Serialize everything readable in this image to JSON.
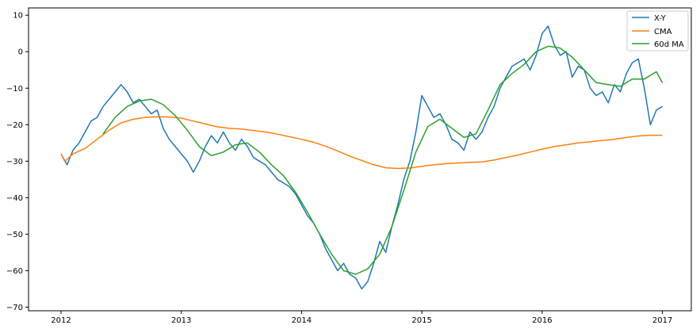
{
  "chart_data": {
    "type": "line",
    "title": "",
    "xlabel": "",
    "ylabel": "",
    "xlim": [
      2011.73,
      2017.24
    ],
    "ylim": [
      -71,
      12
    ],
    "grid": false,
    "legend_position": "top-right",
    "x_ticks": [
      {
        "value": 2012,
        "label": "2012"
      },
      {
        "value": 2013,
        "label": "2013"
      },
      {
        "value": 2014,
        "label": "2014"
      },
      {
        "value": 2015,
        "label": "2015"
      },
      {
        "value": 2016,
        "label": "2016"
      },
      {
        "value": 2017,
        "label": "2017"
      }
    ],
    "y_ticks": [
      {
        "value": 10,
        "label": "10"
      },
      {
        "value": 0,
        "label": "0"
      },
      {
        "value": -10,
        "label": "−10"
      },
      {
        "value": -20,
        "label": "−20"
      },
      {
        "value": -30,
        "label": "−30"
      },
      {
        "value": -40,
        "label": "−40"
      },
      {
        "value": -50,
        "label": "−50"
      },
      {
        "value": -60,
        "label": "−60"
      },
      {
        "value": -70,
        "label": "−70"
      }
    ],
    "series": [
      {
        "name": "X-Y",
        "color": "#1f77b4",
        "x": [
          2012.0,
          2012.05,
          2012.1,
          2012.15,
          2012.2,
          2012.25,
          2012.3,
          2012.35,
          2012.4,
          2012.45,
          2012.5,
          2012.55,
          2012.6,
          2012.65,
          2012.7,
          2012.75,
          2012.8,
          2012.85,
          2012.9,
          2012.95,
          2013.0,
          2013.05,
          2013.1,
          2013.15,
          2013.2,
          2013.25,
          2013.3,
          2013.35,
          2013.4,
          2013.45,
          2013.5,
          2013.55,
          2013.6,
          2013.65,
          2013.7,
          2013.75,
          2013.8,
          2013.85,
          2013.9,
          2013.95,
          2014.0,
          2014.05,
          2014.1,
          2014.15,
          2014.2,
          2014.25,
          2014.3,
          2014.35,
          2014.4,
          2014.45,
          2014.5,
          2014.55,
          2014.6,
          2014.65,
          2014.7,
          2014.75,
          2014.8,
          2014.85,
          2014.9,
          2014.95,
          2015.0,
          2015.05,
          2015.1,
          2015.15,
          2015.2,
          2015.25,
          2015.3,
          2015.35,
          2015.4,
          2015.45,
          2015.5,
          2015.55,
          2015.6,
          2015.65,
          2015.7,
          2015.75,
          2015.8,
          2015.85,
          2015.9,
          2015.95,
          2016.0,
          2016.05,
          2016.1,
          2016.15,
          2016.2,
          2016.25,
          2016.3,
          2016.35,
          2016.4,
          2016.45,
          2016.5,
          2016.55,
          2016.6,
          2016.65,
          2016.7,
          2016.75,
          2016.8,
          2016.85,
          2016.9,
          2016.95,
          2017.0
        ],
        "y": [
          -28,
          -31,
          -27,
          -25,
          -22,
          -19,
          -18,
          -15,
          -13,
          -11,
          -9,
          -11,
          -14,
          -13,
          -15,
          -17,
          -16,
          -21,
          -24,
          -26,
          -28,
          -30,
          -33,
          -30,
          -26,
          -23,
          -25,
          -22,
          -25,
          -27,
          -24,
          -26,
          -29,
          -30,
          -31,
          -33,
          -35,
          -36,
          -37,
          -39,
          -42,
          -45,
          -47,
          -50,
          -54,
          -57,
          -60,
          -58,
          -61,
          -62,
          -65,
          -63,
          -58,
          -52,
          -55,
          -48,
          -42,
          -35,
          -30,
          -22,
          -12,
          -15,
          -18,
          -17,
          -20,
          -24,
          -25,
          -27,
          -22,
          -24,
          -22,
          -18,
          -15,
          -10,
          -7,
          -4,
          -3,
          -2,
          -5,
          -1,
          5,
          7,
          2,
          -1,
          0,
          -7,
          -4,
          -5,
          -10,
          -12,
          -11,
          -14,
          -9,
          -11,
          -6,
          -3,
          -2,
          -10,
          -20,
          -16,
          -15
        ]
      },
      {
        "name": "CMA",
        "color": "#ff7f0e",
        "x": [
          2012.0,
          2012.03,
          2012.05,
          2012.1,
          2012.2,
          2012.3,
          2012.4,
          2012.5,
          2012.6,
          2012.7,
          2012.8,
          2012.9,
          2013.0,
          2013.1,
          2013.2,
          2013.3,
          2013.4,
          2013.5,
          2013.6,
          2013.7,
          2013.8,
          2013.9,
          2014.0,
          2014.1,
          2014.2,
          2014.3,
          2014.4,
          2014.5,
          2014.6,
          2014.7,
          2014.8,
          2014.9,
          2015.0,
          2015.1,
          2015.2,
          2015.3,
          2015.4,
          2015.5,
          2015.6,
          2015.7,
          2015.8,
          2015.9,
          2016.0,
          2016.1,
          2016.2,
          2016.3,
          2016.4,
          2016.5,
          2016.6,
          2016.7,
          2016.8,
          2016.9,
          2017.0
        ],
        "y": [
          -28,
          -30,
          -29.5,
          -28,
          -26.5,
          -24,
          -21.5,
          -19.5,
          -18.5,
          -18,
          -17.8,
          -17.9,
          -18.2,
          -19,
          -19.8,
          -20.6,
          -21,
          -21.2,
          -21.6,
          -22,
          -22.6,
          -23.3,
          -24,
          -24.8,
          -25.9,
          -27.2,
          -28.6,
          -29.8,
          -31,
          -31.8,
          -32,
          -31.9,
          -31.4,
          -31,
          -30.7,
          -30.5,
          -30.3,
          -30.2,
          -29.7,
          -29,
          -28.3,
          -27.5,
          -26.7,
          -26,
          -25.5,
          -25,
          -24.7,
          -24.3,
          -24,
          -23.5,
          -23.1,
          -22.9,
          -22.9
        ]
      },
      {
        "name": "60d MA",
        "color": "#2ca02c",
        "x": [
          2012.35,
          2012.45,
          2012.55,
          2012.65,
          2012.75,
          2012.85,
          2012.95,
          2013.05,
          2013.15,
          2013.25,
          2013.35,
          2013.45,
          2013.55,
          2013.65,
          2013.75,
          2013.85,
          2013.95,
          2014.05,
          2014.15,
          2014.25,
          2014.35,
          2014.45,
          2014.55,
          2014.65,
          2014.75,
          2014.85,
          2014.95,
          2015.05,
          2015.15,
          2015.25,
          2015.35,
          2015.45,
          2015.55,
          2015.65,
          2015.75,
          2015.85,
          2015.95,
          2016.05,
          2016.15,
          2016.25,
          2016.35,
          2016.45,
          2016.55,
          2016.65,
          2016.75,
          2016.85,
          2016.95,
          2017.0
        ],
        "y": [
          -22.5,
          -18,
          -15,
          -13.5,
          -13,
          -14.5,
          -17.5,
          -21.5,
          -26,
          -28.5,
          -27.5,
          -25.5,
          -25,
          -27.5,
          -31,
          -34,
          -38.5,
          -44,
          -50,
          -55.5,
          -60,
          -61,
          -59.5,
          -55.5,
          -48,
          -38,
          -27.5,
          -20.5,
          -18.5,
          -21,
          -23.5,
          -22.5,
          -16,
          -9,
          -6,
          -3.5,
          0,
          1.5,
          1,
          -1.5,
          -5,
          -8.5,
          -9,
          -9.5,
          -7.5,
          -7.5,
          -5.5,
          -8.5
        ]
      }
    ]
  }
}
